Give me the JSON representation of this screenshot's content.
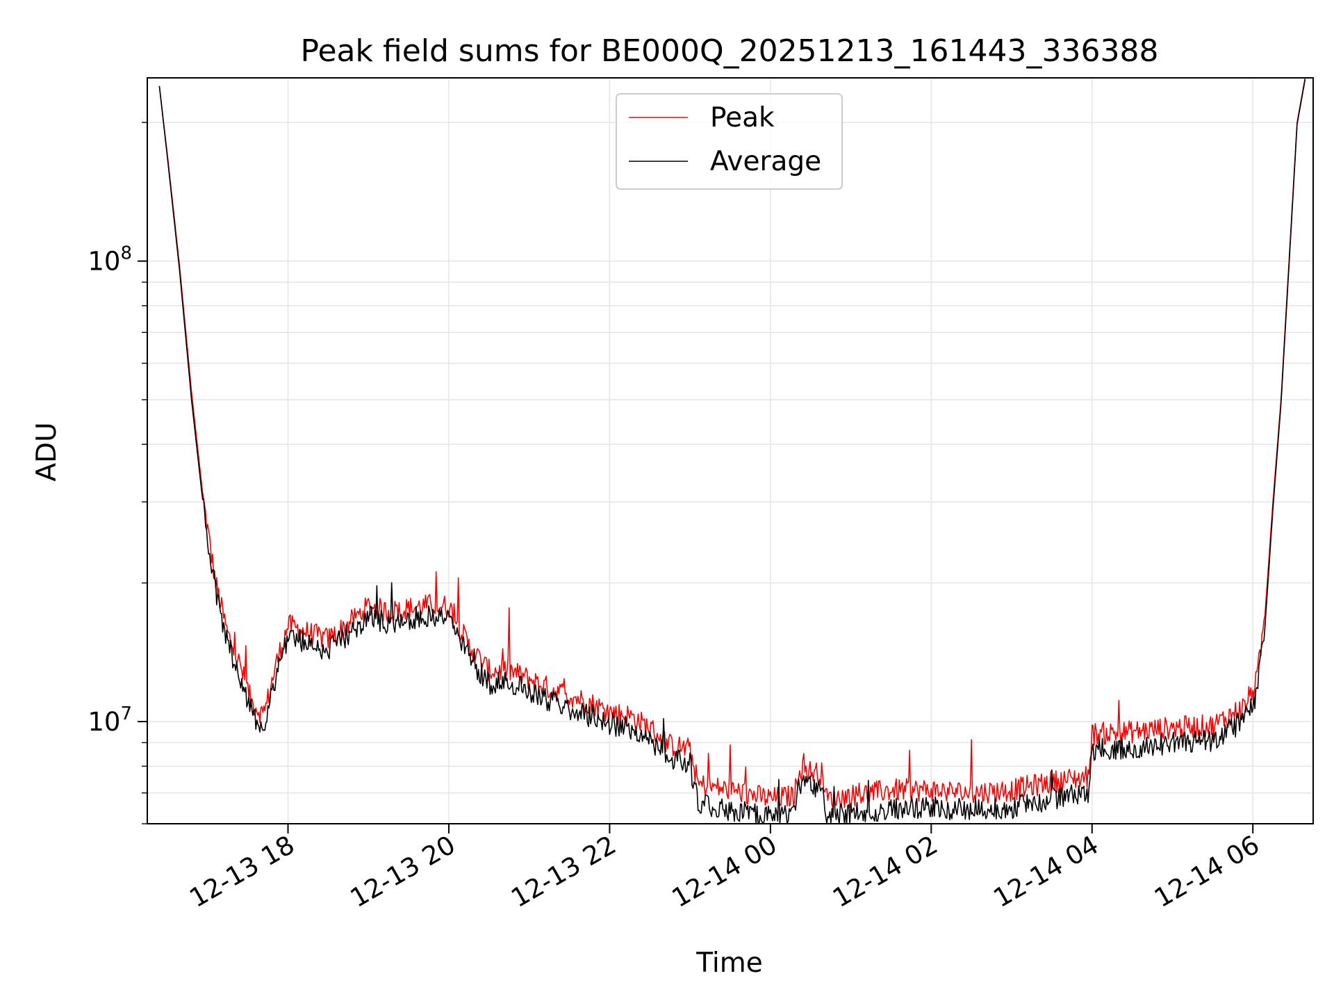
{
  "chart_data": {
    "type": "line",
    "title": "Peak field sums for BE000Q_20251213_161443_336388",
    "xlabel": "Time",
    "ylabel": "ADU",
    "yscale": "log",
    "ylim": [
      6000000,
      250000000
    ],
    "xlim_hours": [
      16.25,
      6.75
    ],
    "grid": true,
    "legend_position": "upper center",
    "x_ticks": [
      {
        "hour": 18,
        "label": "12-13 18"
      },
      {
        "hour": 20,
        "label": "12-13 20"
      },
      {
        "hour": 22,
        "label": "12-13 22"
      },
      {
        "hour": 24,
        "label": "12-14 00"
      },
      {
        "hour": 26,
        "label": "12-14 02"
      },
      {
        "hour": 28,
        "label": "12-14 04"
      },
      {
        "hour": 30,
        "label": "12-14 06"
      }
    ],
    "y_major_ticks": [
      {
        "value": 10000000,
        "base": "10",
        "exp": "7"
      },
      {
        "value": 100000000,
        "base": "10",
        "exp": "8"
      }
    ],
    "series": [
      {
        "name": "Peak",
        "color": "#ff0000",
        "x_hours": [
          16.4,
          16.5,
          16.65,
          16.8,
          16.95,
          17.1,
          17.25,
          17.4,
          17.55,
          17.7,
          17.85,
          18.0,
          18.25,
          18.5,
          18.75,
          19.0,
          19.25,
          19.5,
          19.75,
          20.0,
          20.25,
          20.5,
          20.75,
          21.0,
          21.25,
          21.5,
          21.75,
          22.0,
          22.25,
          22.5,
          22.75,
          23.0,
          23.1,
          23.5,
          24.0,
          24.3,
          24.35,
          24.65,
          24.7,
          25.0,
          25.5,
          26.0,
          26.5,
          27.0,
          27.5,
          27.95,
          28.0,
          28.5,
          29.0,
          29.5,
          29.9,
          30.05,
          30.15,
          30.25,
          30.35,
          30.45,
          30.55,
          30.65
        ],
        "values": [
          240000000,
          170000000,
          98000000,
          52000000,
          30000000,
          20000000,
          15500000,
          13300000,
          11000000,
          10300000,
          13300000,
          16200000,
          15600000,
          15100000,
          16300000,
          17800000,
          17300000,
          17600000,
          17900000,
          17800000,
          14600000,
          12900000,
          12900000,
          12400000,
          11800000,
          11400000,
          11000000,
          10500000,
          10300000,
          9700000,
          8900000,
          8700000,
          7300000,
          7100000,
          6800000,
          6900000,
          7900000,
          7700000,
          6800000,
          6900000,
          7100000,
          7100000,
          7000000,
          7100000,
          7400000,
          7600000,
          9400000,
          9500000,
          9700000,
          9800000,
          10800000,
          12300000,
          17000000,
          30000000,
          50000000,
          100000000,
          200000000,
          250000000
        ]
      },
      {
        "name": "Average",
        "color": "#000000",
        "x_hours": [
          16.4,
          16.5,
          16.65,
          16.8,
          16.95,
          17.1,
          17.25,
          17.4,
          17.55,
          17.7,
          17.85,
          18.0,
          18.25,
          18.5,
          18.75,
          19.0,
          19.25,
          19.5,
          19.75,
          20.0,
          20.25,
          20.5,
          20.75,
          21.0,
          21.25,
          21.5,
          21.75,
          22.0,
          22.25,
          22.5,
          22.75,
          23.0,
          23.1,
          23.5,
          24.0,
          24.3,
          24.35,
          24.65,
          24.7,
          25.0,
          25.5,
          26.0,
          26.5,
          27.0,
          27.5,
          27.95,
          28.0,
          28.5,
          29.0,
          29.5,
          29.9,
          30.05,
          30.15,
          30.25,
          30.35,
          30.45,
          30.55,
          30.65
        ],
        "values": [
          240000000,
          168000000,
          96000000,
          50000000,
          29000000,
          19000000,
          14800000,
          12600000,
          10400000,
          9700000,
          12600000,
          15400000,
          14800000,
          14300000,
          15500000,
          16900000,
          16400000,
          16700000,
          17000000,
          16900000,
          13800000,
          12100000,
          12100000,
          11700000,
          11100000,
          10700000,
          10300000,
          9900000,
          9700000,
          9100000,
          8300000,
          8100000,
          6600000,
          6450000,
          6200000,
          6300000,
          7400000,
          7200000,
          6200000,
          6300000,
          6500000,
          6500000,
          6400000,
          6500000,
          6800000,
          7000000,
          8700000,
          8800000,
          9000000,
          9100000,
          10100000,
          11500000,
          16000000,
          29000000,
          49000000,
          98000000,
          198000000,
          248000000
        ]
      }
    ]
  }
}
